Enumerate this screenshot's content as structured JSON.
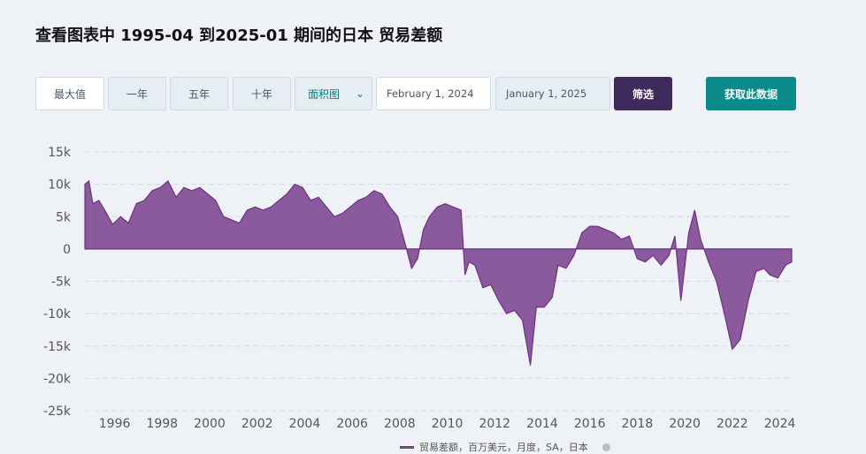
{
  "title": "查看图表中 1995-04 到2025-01 期间的日本 贸易差额",
  "controls": {
    "range_buttons": [
      "最大值",
      "一年",
      "五年",
      "十年"
    ],
    "chart_type_value": "面积图",
    "start_date": "February 1, 2024",
    "end_date": "January 1, 2025",
    "filter_label": "筛选",
    "fetch_label": "获取此数据"
  },
  "legend": {
    "label": "贸易差额，百万美元，月度，SA，日本"
  },
  "colors": {
    "area_fill": "#8b5a9c",
    "area_stroke": "#6f2f84",
    "grid": "#d5dbe3"
  },
  "chart_data": {
    "type": "area",
    "title": "",
    "xlabel": "",
    "ylabel": "",
    "ylim": [
      -25000,
      15000
    ],
    "xlim": [
      "1995-04",
      "2025-01"
    ],
    "y_ticks": [
      "15k",
      "10k",
      "5k",
      "0",
      "-5k",
      "-10k",
      "-15k",
      "-20k",
      "-25k"
    ],
    "x_ticks": [
      "1996",
      "1998",
      "2000",
      "2002",
      "2004",
      "2006",
      "2008",
      "2010",
      "2012",
      "2014",
      "2016",
      "2018",
      "2020",
      "2022",
      "2024"
    ],
    "grid": true,
    "legend_position": "bottom",
    "series": [
      {
        "points": [
          [
            "1995-04",
            10000
          ],
          [
            "1995-06",
            10500
          ],
          [
            "1995-08",
            7000
          ],
          [
            "1995-11",
            7500
          ],
          [
            "1996-02",
            6000
          ],
          [
            "1996-06",
            3800
          ],
          [
            "1996-10",
            5000
          ],
          [
            "1997-02",
            4000
          ],
          [
            "1997-06",
            7000
          ],
          [
            "1997-10",
            7500
          ],
          [
            "1998-02",
            9000
          ],
          [
            "1998-06",
            9500
          ],
          [
            "1998-10",
            10500
          ],
          [
            "1999-02",
            8000
          ],
          [
            "1999-06",
            9500
          ],
          [
            "1999-10",
            9000
          ],
          [
            "2000-02",
            9500
          ],
          [
            "2000-06",
            8500
          ],
          [
            "2000-10",
            7500
          ],
          [
            "2001-02",
            5000
          ],
          [
            "2001-06",
            4500
          ],
          [
            "2001-10",
            4000
          ],
          [
            "2002-02",
            6000
          ],
          [
            "2002-06",
            6500
          ],
          [
            "2002-10",
            6000
          ],
          [
            "2003-02",
            6500
          ],
          [
            "2003-06",
            7500
          ],
          [
            "2003-10",
            8500
          ],
          [
            "2004-02",
            10000
          ],
          [
            "2004-06",
            9500
          ],
          [
            "2004-10",
            7500
          ],
          [
            "2005-02",
            8000
          ],
          [
            "2005-06",
            6500
          ],
          [
            "2005-10",
            5000
          ],
          [
            "2006-02",
            5500
          ],
          [
            "2006-06",
            6500
          ],
          [
            "2006-10",
            7500
          ],
          [
            "2007-02",
            8000
          ],
          [
            "2007-06",
            9000
          ],
          [
            "2007-10",
            8500
          ],
          [
            "2008-02",
            6500
          ],
          [
            "2008-06",
            5000
          ],
          [
            "2008-10",
            500
          ],
          [
            "2009-01",
            -3000
          ],
          [
            "2009-04",
            -1500
          ],
          [
            "2009-07",
            3000
          ],
          [
            "2009-10",
            5000
          ],
          [
            "2010-02",
            6500
          ],
          [
            "2010-06",
            7000
          ],
          [
            "2010-10",
            6500
          ],
          [
            "2011-02",
            6000
          ],
          [
            "2011-04",
            -4000
          ],
          [
            "2011-06",
            -2000
          ],
          [
            "2011-09",
            -2500
          ],
          [
            "2012-01",
            -6000
          ],
          [
            "2012-05",
            -5500
          ],
          [
            "2012-09",
            -8000
          ],
          [
            "2013-01",
            -10000
          ],
          [
            "2013-05",
            -9500
          ],
          [
            "2013-09",
            -11000
          ],
          [
            "2014-01",
            -18000
          ],
          [
            "2014-04",
            -9000
          ],
          [
            "2014-08",
            -9000
          ],
          [
            "2014-12",
            -7500
          ],
          [
            "2015-03",
            -2500
          ],
          [
            "2015-07",
            -3000
          ],
          [
            "2015-11",
            -1000
          ],
          [
            "2016-03",
            2500
          ],
          [
            "2016-07",
            3500
          ],
          [
            "2016-11",
            3500
          ],
          [
            "2017-03",
            3000
          ],
          [
            "2017-07",
            2500
          ],
          [
            "2017-11",
            1500
          ],
          [
            "2018-03",
            2000
          ],
          [
            "2018-07",
            -1500
          ],
          [
            "2018-11",
            -2000
          ],
          [
            "2019-03",
            -1000
          ],
          [
            "2019-07",
            -2500
          ],
          [
            "2019-11",
            -1000
          ],
          [
            "2020-02",
            2000
          ],
          [
            "2020-05",
            -8000
          ],
          [
            "2020-09",
            2500
          ],
          [
            "2020-12",
            6000
          ],
          [
            "2021-03",
            1500
          ],
          [
            "2021-07",
            -2000
          ],
          [
            "2021-11",
            -5000
          ],
          [
            "2022-03",
            -10000
          ],
          [
            "2022-07",
            -15500
          ],
          [
            "2022-11",
            -14000
          ],
          [
            "2023-03",
            -8000
          ],
          [
            "2023-07",
            -3500
          ],
          [
            "2023-11",
            -3000
          ],
          [
            "2024-02",
            -4000
          ],
          [
            "2024-06",
            -4500
          ],
          [
            "2024-10",
            -2500
          ],
          [
            "2025-01",
            -2000
          ]
        ]
      }
    ]
  }
}
